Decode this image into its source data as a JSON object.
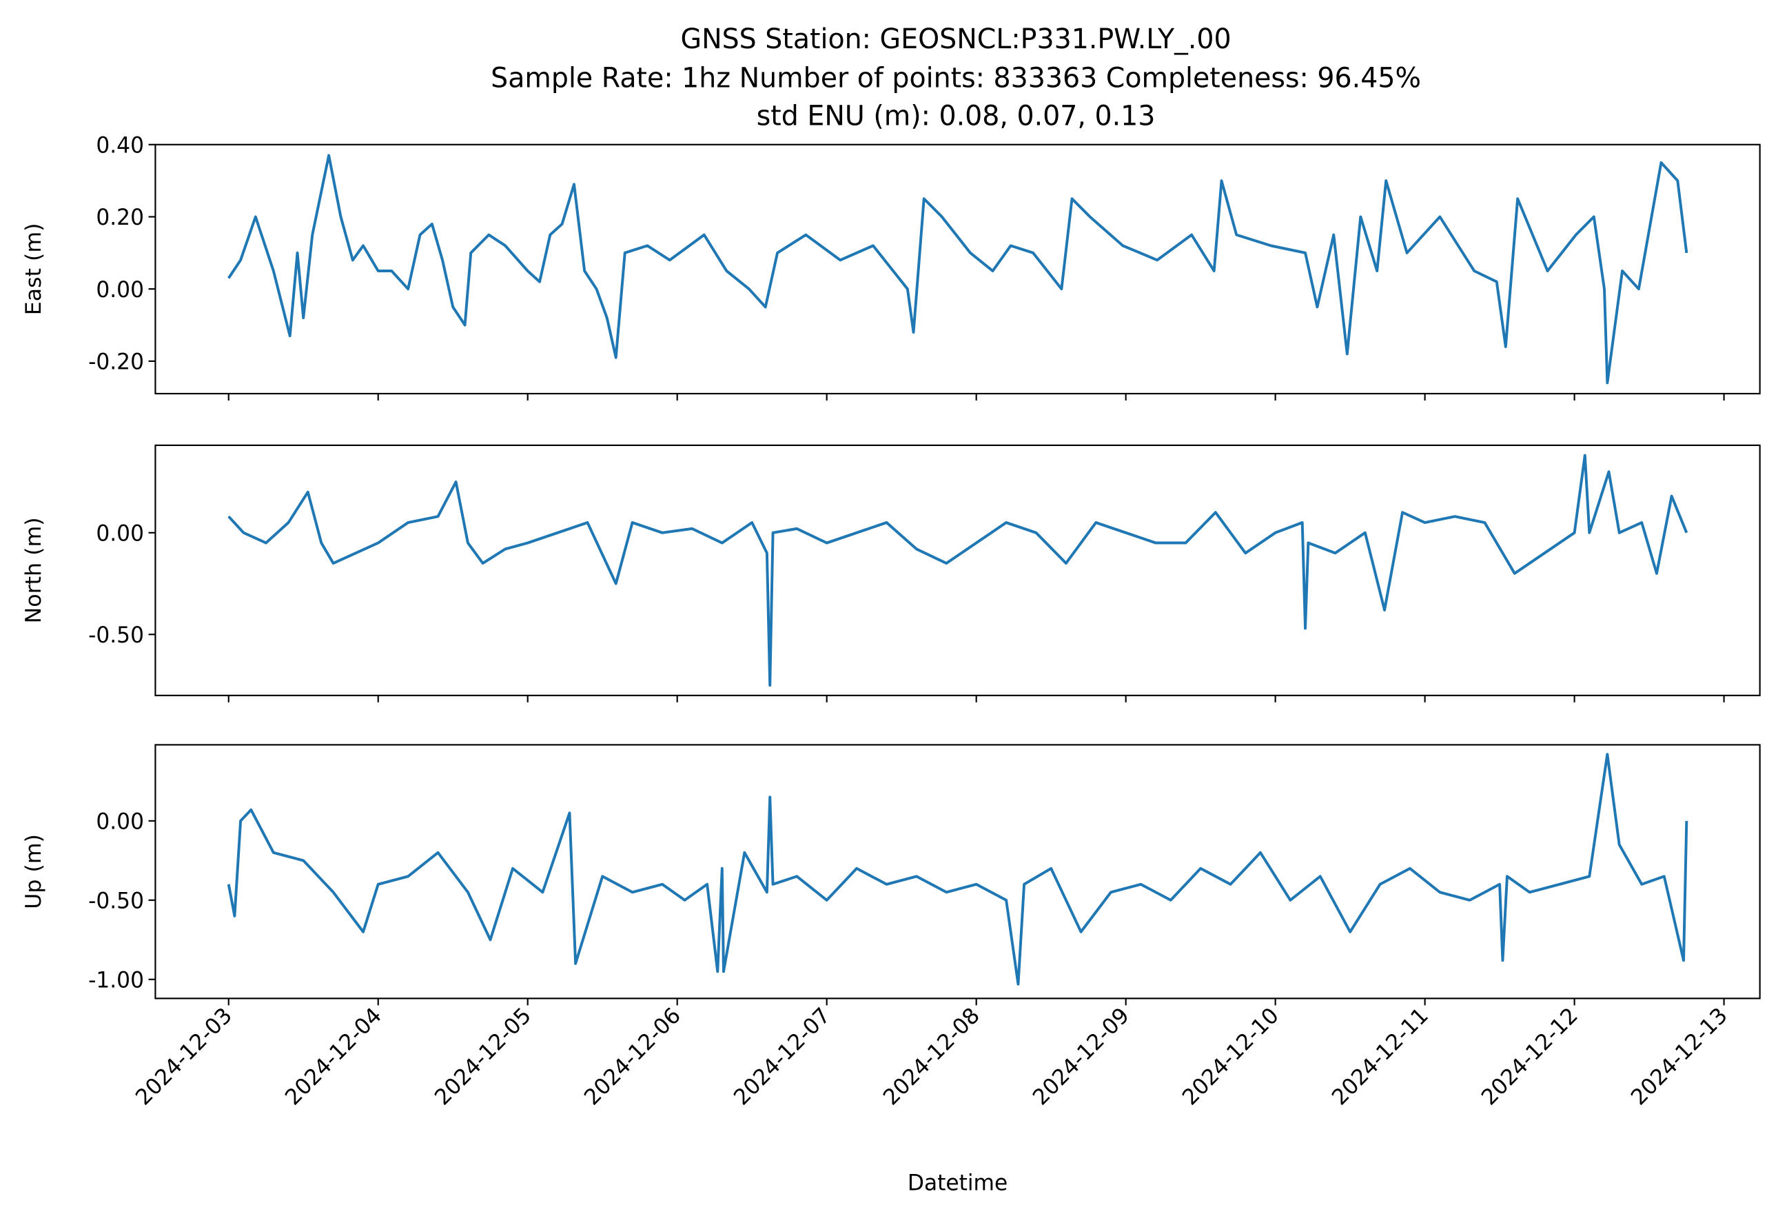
{
  "chart_data": [
    {
      "type": "line",
      "title": "GNSS Station: GEOSNCL:P331.PW.LY_.00",
      "subtitle": [
        "Sample Rate: 1hz   Number of points: 833363    Completeness:  96.45%",
        "std ENU (m):  0.08, 0.07, 0.13"
      ],
      "ylabel": "East (m)",
      "color": "#1f77b4",
      "x": [
        0,
        0.08,
        0.18,
        0.3,
        0.41,
        0.46,
        0.5,
        0.56,
        0.67,
        0.75,
        0.83,
        0.9,
        1.0,
        1.09,
        1.2,
        1.28,
        1.36,
        1.43,
        1.5,
        1.58,
        1.62,
        1.74,
        1.85,
        2.0,
        2.08,
        2.15,
        2.23,
        2.31,
        2.38,
        2.46,
        2.53,
        2.59,
        2.65,
        2.8,
        2.95,
        3.18,
        3.33,
        3.48,
        3.59,
        3.67,
        3.86,
        4.09,
        4.31,
        4.54,
        4.58,
        4.65,
        4.77,
        4.96,
        5.11,
        5.23,
        5.38,
        5.57,
        5.64,
        5.76,
        5.98,
        6.21,
        6.44,
        6.59,
        6.64,
        6.74,
        6.97,
        7.2,
        7.28,
        7.39,
        7.48,
        7.57,
        7.68,
        7.74,
        7.88,
        8.1,
        8.33,
        8.48,
        8.54,
        8.62,
        8.82,
        9.01,
        9.13,
        9.2,
        9.22,
        9.32,
        9.43,
        9.58,
        9.69,
        9.75
      ],
      "values": [
        0.03,
        0.08,
        0.2,
        0.05,
        -0.13,
        0.1,
        -0.08,
        0.15,
        0.37,
        0.2,
        0.08,
        0.12,
        0.05,
        0.05,
        0.0,
        0.15,
        0.18,
        0.08,
        -0.05,
        -0.1,
        0.1,
        0.15,
        0.12,
        0.05,
        0.02,
        0.15,
        0.18,
        0.29,
        0.05,
        0.0,
        -0.08,
        -0.19,
        0.1,
        0.12,
        0.08,
        0.15,
        0.05,
        0.0,
        -0.05,
        0.1,
        0.15,
        0.08,
        0.12,
        0.0,
        -0.12,
        0.25,
        0.2,
        0.1,
        0.05,
        0.12,
        0.1,
        0.0,
        0.25,
        0.2,
        0.12,
        0.08,
        0.15,
        0.05,
        0.3,
        0.15,
        0.12,
        0.1,
        -0.05,
        0.15,
        -0.18,
        0.2,
        0.05,
        0.3,
        0.1,
        0.2,
        0.05,
        0.02,
        -0.16,
        0.25,
        0.05,
        0.15,
        0.2,
        0.0,
        -0.26,
        0.05,
        0.0,
        0.35,
        0.3,
        0.1
      ],
      "xlim": [
        -0.49,
        10.24
      ],
      "xticks": [
        0,
        1,
        2,
        3,
        4,
        5,
        6,
        7,
        8,
        9,
        10
      ],
      "ylim": [
        -0.29,
        0.4
      ],
      "yticks": [
        {
          "value": -0.2,
          "label": "-0.20"
        },
        {
          "value": 0,
          "label": "0.00"
        },
        {
          "value": 0.2,
          "label": "0.20"
        },
        {
          "value": 0.4,
          "label": "0.40"
        }
      ]
    },
    {
      "type": "line",
      "ylabel": "North (m)",
      "color": "#1f77b4",
      "x": [
        0,
        0.1,
        0.25,
        0.4,
        0.53,
        0.62,
        0.7,
        0.85,
        1.0,
        1.2,
        1.4,
        1.52,
        1.6,
        1.7,
        1.85,
        2.0,
        2.2,
        2.4,
        2.59,
        2.7,
        2.9,
        3.1,
        3.3,
        3.5,
        3.6,
        3.62,
        3.64,
        3.8,
        4.0,
        4.2,
        4.4,
        4.6,
        4.8,
        5.0,
        5.2,
        5.4,
        5.6,
        5.8,
        6.0,
        6.2,
        6.4,
        6.6,
        6.8,
        7.0,
        7.18,
        7.2,
        7.22,
        7.4,
        7.6,
        7.73,
        7.85,
        8.0,
        8.2,
        8.4,
        8.6,
        8.8,
        9.0,
        9.07,
        9.1,
        9.23,
        9.3,
        9.45,
        9.55,
        9.65,
        9.75
      ],
      "values": [
        0.08,
        0.0,
        -0.05,
        0.05,
        0.2,
        -0.05,
        -0.15,
        -0.1,
        -0.05,
        0.05,
        0.08,
        0.25,
        -0.05,
        -0.15,
        -0.08,
        -0.05,
        0.0,
        0.05,
        -0.25,
        0.05,
        0.0,
        0.02,
        -0.05,
        0.05,
        -0.1,
        -0.75,
        0.0,
        0.02,
        -0.05,
        0.0,
        0.05,
        -0.08,
        -0.15,
        -0.05,
        0.05,
        0.0,
        -0.15,
        0.05,
        0.0,
        -0.05,
        -0.05,
        0.1,
        -0.1,
        0.0,
        0.05,
        -0.47,
        -0.05,
        -0.1,
        0.0,
        -0.38,
        0.1,
        0.05,
        0.08,
        0.05,
        -0.2,
        -0.1,
        0.0,
        0.38,
        0.0,
        0.3,
        0.0,
        0.05,
        -0.2,
        0.18,
        0.0
      ],
      "xlim": [
        -0.49,
        10.24
      ],
      "xticks": [
        0,
        1,
        2,
        3,
        4,
        5,
        6,
        7,
        8,
        9,
        10
      ],
      "ylim": [
        -0.8,
        0.43
      ],
      "yticks": [
        {
          "value": -0.5,
          "label": "-0.50"
        },
        {
          "value": 0,
          "label": "0.00"
        }
      ]
    },
    {
      "type": "line",
      "ylabel": "Up (m)",
      "xlabel": "Datetime",
      "color": "#1f77b4",
      "x": [
        0,
        0.04,
        0.08,
        0.15,
        0.3,
        0.5,
        0.7,
        0.9,
        1.0,
        1.2,
        1.4,
        1.6,
        1.75,
        1.9,
        2.1,
        2.28,
        2.32,
        2.5,
        2.7,
        2.9,
        3.05,
        3.2,
        3.27,
        3.3,
        3.31,
        3.45,
        3.6,
        3.62,
        3.64,
        3.8,
        4.0,
        4.2,
        4.4,
        4.6,
        4.8,
        5.0,
        5.2,
        5.28,
        5.32,
        5.5,
        5.7,
        5.9,
        6.1,
        6.3,
        6.5,
        6.7,
        6.9,
        7.1,
        7.3,
        7.5,
        7.7,
        7.9,
        8.1,
        8.3,
        8.5,
        8.52,
        8.55,
        8.7,
        8.9,
        9.1,
        9.22,
        9.3,
        9.45,
        9.6,
        9.73,
        9.75
      ],
      "values": [
        -0.4,
        -0.6,
        0.0,
        0.07,
        -0.2,
        -0.25,
        -0.45,
        -0.7,
        -0.4,
        -0.35,
        -0.2,
        -0.45,
        -0.75,
        -0.3,
        -0.45,
        0.05,
        -0.9,
        -0.35,
        -0.45,
        -0.4,
        -0.5,
        -0.4,
        -0.95,
        -0.3,
        -0.95,
        -0.2,
        -0.45,
        0.15,
        -0.4,
        -0.35,
        -0.5,
        -0.3,
        -0.4,
        -0.35,
        -0.45,
        -0.4,
        -0.5,
        -1.03,
        -0.4,
        -0.3,
        -0.7,
        -0.45,
        -0.4,
        -0.5,
        -0.3,
        -0.4,
        -0.2,
        -0.5,
        -0.35,
        -0.7,
        -0.4,
        -0.3,
        -0.45,
        -0.5,
        -0.4,
        -0.88,
        -0.35,
        -0.45,
        -0.4,
        -0.35,
        0.42,
        -0.15,
        -0.4,
        -0.35,
        -0.88,
        0.0
      ],
      "xlim": [
        -0.49,
        10.24
      ],
      "xticks": [
        {
          "value": 0,
          "label": "2024-12-03"
        },
        {
          "value": 1,
          "label": "2024-12-04"
        },
        {
          "value": 2,
          "label": "2024-12-05"
        },
        {
          "value": 3,
          "label": "2024-12-06"
        },
        {
          "value": 4,
          "label": "2024-12-07"
        },
        {
          "value": 5,
          "label": "2024-12-08"
        },
        {
          "value": 6,
          "label": "2024-12-09"
        },
        {
          "value": 7,
          "label": "2024-12-10"
        },
        {
          "value": 8,
          "label": "2024-12-11"
        },
        {
          "value": 9,
          "label": "2024-12-12"
        },
        {
          "value": 10,
          "label": "2024-12-13"
        }
      ],
      "ylim": [
        -1.12,
        0.48
      ],
      "yticks": [
        {
          "value": -1,
          "label": "-1.00"
        },
        {
          "value": -0.5,
          "label": "-0.50"
        },
        {
          "value": 0,
          "label": "0.00"
        }
      ]
    }
  ]
}
